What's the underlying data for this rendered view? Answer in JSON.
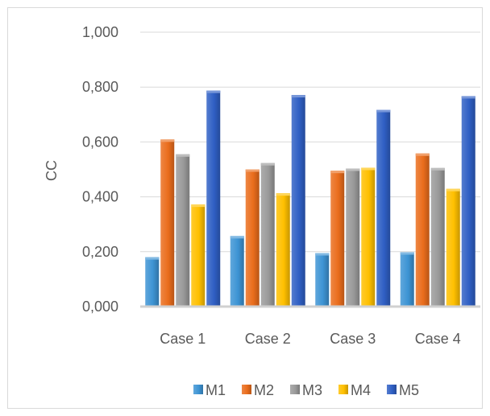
{
  "chart_data": {
    "type": "bar",
    "title": "",
    "xlabel": "",
    "ylabel": "CC",
    "categories": [
      "Case 1",
      "Case 2",
      "Case 3",
      "Case 4"
    ],
    "ylim": [
      0,
      1.0
    ],
    "yticks": [
      0,
      0.2,
      0.4,
      0.6,
      0.8,
      1.0
    ],
    "ytick_labels": [
      "0,000",
      "0,200",
      "0,400",
      "0,600",
      "0,800",
      "1,000"
    ],
    "grid": true,
    "legend_position": "bottom",
    "series": [
      {
        "name": "M1",
        "color": "#3d94d4",
        "values": [
          0.18,
          0.257,
          0.195,
          0.198
        ]
      },
      {
        "name": "M2",
        "color": "#ea6d1c",
        "values": [
          0.609,
          0.5,
          0.495,
          0.558
        ]
      },
      {
        "name": "M3",
        "color": "#9a9a9a",
        "values": [
          0.555,
          0.523,
          0.503,
          0.505
        ]
      },
      {
        "name": "M4",
        "color": "#ffc000",
        "values": [
          0.372,
          0.413,
          0.506,
          0.429
        ]
      },
      {
        "name": "M5",
        "color": "#2f5fc4",
        "values": [
          0.787,
          0.771,
          0.717,
          0.767
        ]
      }
    ]
  }
}
